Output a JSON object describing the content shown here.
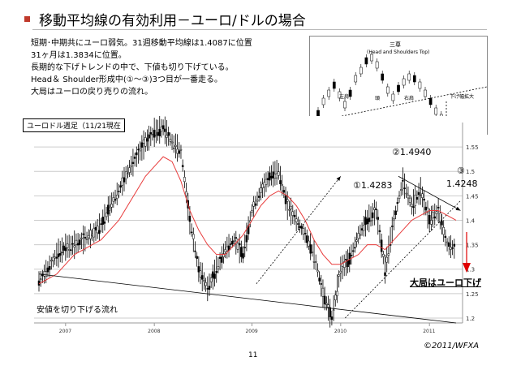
{
  "slide": {
    "title": "移動平均線の有効利用－ユーロ/ドルの場合",
    "description_lines": [
      "短期･中期共にユーロ弱気。31週移動平均線は1.4087に位置",
      "31ヶ月は1.3834に位置。",
      "長期的な下げトレンドの中で、下値も切り下げている。",
      "Head＆ Shoulder形成中(①～③)3つ目が一番走る。",
      "大局はユーロの戻り売りの流れ。"
    ],
    "page_number": "11",
    "copyright": "©2011/WFXA"
  },
  "inset": {
    "title": "三尊",
    "subtitle": "(Head and Shoulders Top)",
    "left_label": "左肩",
    "head_label": "頭",
    "right_label": "右肩",
    "target_label": "下げ幅拡大"
  },
  "chart": {
    "week_label": "ユーロドル週足（11/21現在",
    "annotations": {
      "peak2": "②1.4940",
      "peak1": "①1.4283",
      "peak3_num": "③",
      "peak3_val": "1.4248",
      "trend_down": "大局はユーロ下げ",
      "lows_down": "安値を切り下げる流れ"
    },
    "colors": {
      "candle": "#000000",
      "moving_average": "#e83a3a",
      "arrow": "#e00000",
      "grid": "#cccccc"
    }
  },
  "chart_data": {
    "type": "line",
    "x_ticks": [
      "2007",
      "2008",
      "2009",
      "2010",
      "2011"
    ],
    "y_ticks": [
      "1.2",
      "1.25",
      "1.3",
      "1.35",
      "1.4",
      "1.45",
      "1.5",
      "1.55"
    ],
    "ylim": [
      1.19,
      1.6
    ],
    "series": [
      {
        "values": [
          1.275,
          1.3,
          1.33,
          1.345,
          1.35,
          1.36,
          1.37,
          1.39,
          1.43,
          1.46,
          1.5,
          1.53,
          1.56,
          1.58,
          1.59,
          1.56,
          1.54,
          1.4,
          1.3,
          1.26,
          1.3,
          1.34,
          1.36,
          1.33,
          1.42,
          1.46,
          1.49,
          1.5,
          1.43,
          1.4,
          1.37,
          1.33,
          1.25,
          1.2,
          1.3,
          1.32,
          1.37,
          1.4,
          1.42,
          1.3,
          1.4,
          1.48,
          1.43,
          1.46,
          1.4,
          1.42,
          1.35,
          1.34
        ]
      },
      {
        "values": [
          1.27,
          1.28,
          1.29,
          1.31,
          1.33,
          1.34,
          1.35,
          1.36,
          1.38,
          1.4,
          1.43,
          1.46,
          1.49,
          1.51,
          1.53,
          1.52,
          1.48,
          1.42,
          1.38,
          1.35,
          1.33,
          1.33,
          1.35,
          1.37,
          1.4,
          1.43,
          1.45,
          1.46,
          1.45,
          1.43,
          1.4,
          1.36,
          1.33,
          1.31,
          1.31,
          1.32,
          1.33,
          1.35,
          1.35,
          1.34,
          1.36,
          1.38,
          1.4,
          1.41,
          1.42,
          1.42,
          1.41,
          1.4
        ]
      }
    ],
    "trendlines": [
      {
        "x": [
          0,
          47
        ],
        "y": [
          1.29,
          1.19
        ]
      },
      {
        "x": [
          24.5,
          34
        ],
        "y": [
          1.27,
          1.49
        ]
      },
      {
        "x": [
          34.5,
          47.5
        ],
        "y": [
          1.2,
          1.44
        ]
      },
      {
        "x": [
          40.5,
          47.5
        ],
        "y": [
          1.49,
          1.42
        ]
      }
    ]
  }
}
